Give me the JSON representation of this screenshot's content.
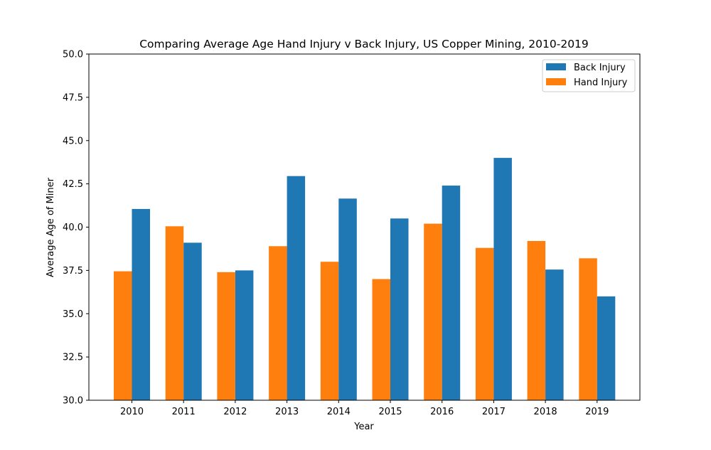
{
  "chart_data": {
    "type": "bar",
    "title": "Comparing Average Age Hand Injury v Back Injury, US Copper Mining, 2010-2019",
    "xlabel": "Year",
    "ylabel": "Average Age of Miner",
    "ylim": [
      30.0,
      50.0
    ],
    "yticks": [
      "30.0",
      "32.5",
      "35.0",
      "37.5",
      "40.0",
      "42.5",
      "45.0",
      "47.5",
      "50.0"
    ],
    "categories": [
      "2010",
      "2011",
      "2012",
      "2013",
      "2014",
      "2015",
      "2016",
      "2017",
      "2018",
      "2019"
    ],
    "series": [
      {
        "name": "Hand Injury",
        "color": "#ff7f0e",
        "values": [
          37.45,
          40.05,
          37.4,
          38.9,
          38.0,
          37.0,
          40.2,
          38.8,
          39.2,
          38.2
        ]
      },
      {
        "name": "Back Injury",
        "color": "#1f77b4",
        "values": [
          41.05,
          39.1,
          37.5,
          42.95,
          41.65,
          40.5,
          42.4,
          44.0,
          37.55,
          36.0
        ]
      }
    ],
    "legend": {
      "position": "top-right",
      "entries": [
        "Back Injury",
        "Hand Injury"
      ]
    },
    "grid": false
  }
}
